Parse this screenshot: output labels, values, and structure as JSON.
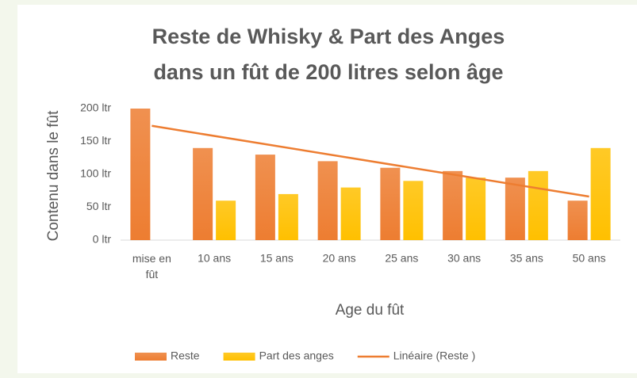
{
  "chart_data": {
    "type": "bar",
    "title": [
      "Reste de Whisky & Part des Anges",
      "dans un fût de 200 litres selon âge"
    ],
    "x_label": "Age du fût",
    "y_label": "Contenu dans le fût",
    "categories": [
      "mise en fût",
      "10 ans",
      "15 ans",
      "20 ans",
      "25 ans",
      "30 ans",
      "35 ans",
      "50 ans"
    ],
    "series": [
      {
        "name": "Reste",
        "color": "#ed7d31",
        "values": [
          200,
          140,
          130,
          120,
          110,
          105,
          95,
          60
        ]
      },
      {
        "name": "Part des anges",
        "color": "#ffc000",
        "values": [
          0,
          60,
          70,
          80,
          90,
          95,
          105,
          140
        ]
      }
    ],
    "trendline": {
      "name": "Linéaire (Reste )",
      "color": "#ed7d31",
      "kind": "linear"
    },
    "ylim": [
      0,
      200
    ],
    "yticks": [
      {
        "value": 0,
        "label": "0 ltr"
      },
      {
        "value": 50,
        "label": "50 ltr"
      },
      {
        "value": 100,
        "label": "100 ltr"
      },
      {
        "value": 150,
        "label": "150 ltr"
      },
      {
        "value": 200,
        "label": "200 ltr"
      }
    ],
    "legend": "bottom"
  }
}
